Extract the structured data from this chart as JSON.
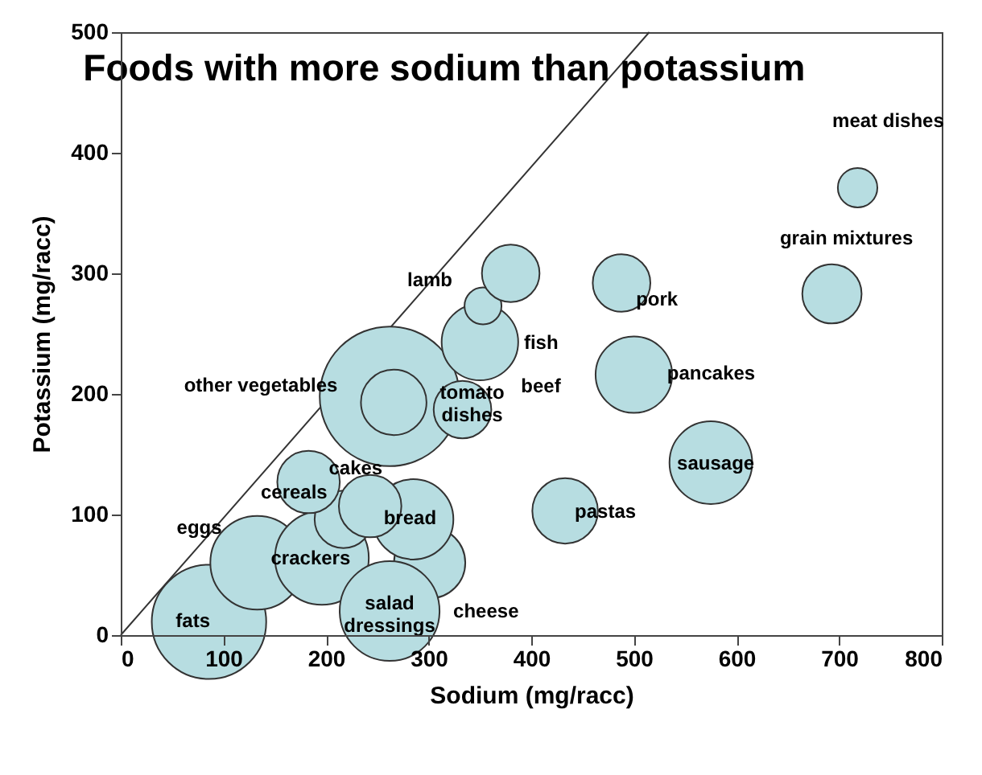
{
  "chart_data": {
    "type": "bubble",
    "title": "Foods with more sodium than potassium",
    "xlabel": "Sodium (mg/racc)",
    "ylabel": "Potassium (mg/racc)",
    "xlim": [
      0,
      800
    ],
    "xticks": [
      0,
      100,
      200,
      300,
      400,
      500,
      600,
      700,
      800
    ],
    "ylim": [
      0,
      500
    ],
    "yticks": [
      0,
      100,
      200,
      300,
      400,
      500
    ],
    "grid": false,
    "series": [
      {
        "type": "line",
        "color": "#333333",
        "x": [
          0,
          515
        ],
        "values": [
          0,
          500
        ]
      },
      {
        "color": "#b7dde1",
        "x": [
          262,
          266,
          86,
          133,
          196,
          217,
          301,
          285,
          262,
          243,
          183,
          333,
          350,
          353,
          380,
          433,
          575,
          500,
          488,
          693,
          718
        ],
        "values": [
          198,
          193,
          11,
          60,
          64,
          96,
          60,
          96,
          20,
          107,
          127,
          187,
          243,
          273,
          300,
          103,
          143,
          216,
          292,
          283,
          371
        ],
        "sizes": [
          1,
          0.22,
          0.67,
          0.45,
          0.45,
          0.17,
          0.26,
          0.33,
          0.51,
          0.2,
          0.2,
          0.17,
          0.3,
          0.07,
          0.17,
          0.22,
          0.35,
          0.3,
          0.17,
          0.18,
          0.08
        ]
      }
    ],
    "annotations": [
      {
        "text": "meat dishes",
        "x": 718,
        "y": 371
      },
      {
        "text": "grain mixtures",
        "x": 693,
        "y": 283
      },
      {
        "text": "pork",
        "x": 488,
        "y": 292
      },
      {
        "text": "pancakes",
        "x": 500,
        "y": 216
      },
      {
        "text": "sausage",
        "x": 575,
        "y": 143
      },
      {
        "text": "pastas",
        "x": 433,
        "y": 103
      },
      "lamb",
      {
        "text": "fish",
        "x": 350,
        "y": 243
      },
      "beef",
      {
        "text": "tomato\ndishes",
        "x": 333,
        "y": 187
      },
      {
        "text": "other vegetables",
        "x": 262,
        "y": 198
      },
      {
        "text": "cakes",
        "x": 243,
        "y": 107
      },
      {
        "text": "cereals",
        "x": 183,
        "y": 127
      },
      {
        "text": "eggs",
        "x": 133,
        "y": 60
      },
      {
        "text": "crackers",
        "x": 196,
        "y": 64
      },
      {
        "text": "bread",
        "x": 285,
        "y": 96
      },
      {
        "text": "salad\ndressings",
        "x": 262,
        "y": 20
      },
      {
        "text": "cheese",
        "x": 301,
        "y": 60
      },
      {
        "text": "fats",
        "x": 86,
        "y": 11
      }
    ]
  }
}
